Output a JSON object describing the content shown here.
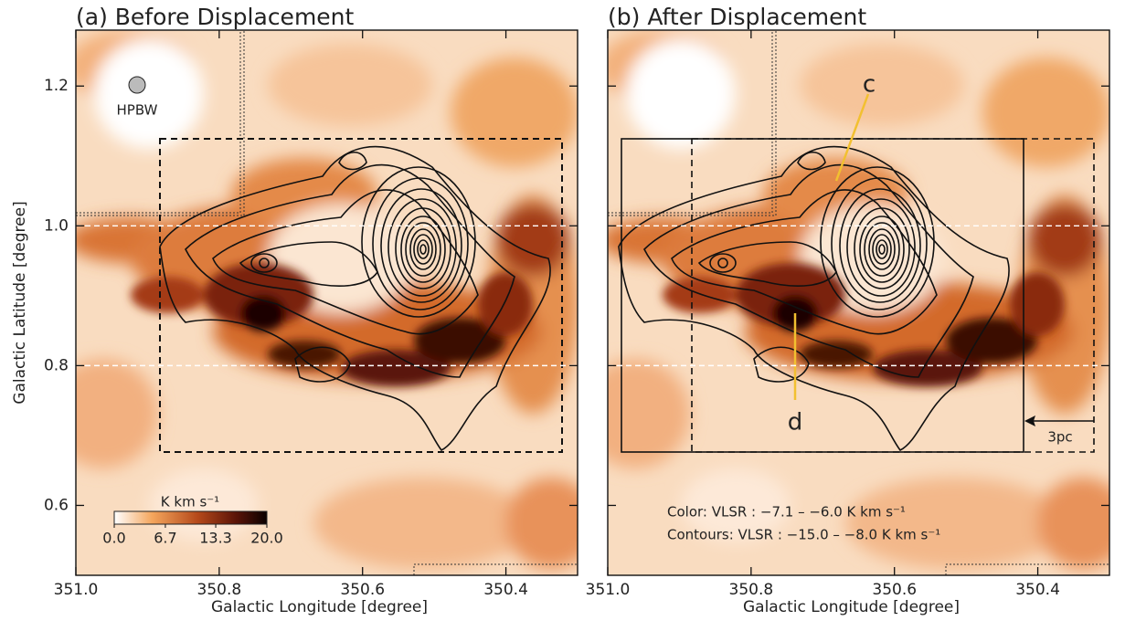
{
  "chart_data": [
    {
      "type": "map",
      "title": "(a) Before Displacement",
      "xlabel": "Galactic Longitude [degree]",
      "ylabel": "Galactic Latitude [degree]",
      "xlim": [
        351.0,
        350.3
      ],
      "ylim": [
        0.5,
        1.28
      ],
      "xticks": [
        {
          "value": 351.0,
          "label": "351.0"
        },
        350.8,
        350.6,
        350.4
      ],
      "yticks": [
        0.6,
        0.8,
        {
          "value": 1.0,
          "label": "1.0"
        },
        1.2
      ],
      "reference_lines": [
        0.8,
        1.0
      ],
      "annotations": [
        "HPBW"
      ],
      "colorbar": {
        "label": "K km s⁻¹",
        "clim": [
          0,
          20
        ],
        "ticks": [
          {
            "value": 0,
            "label": "0.0"
          },
          6.7,
          13.3,
          {
            "value": 20,
            "label": "20.0"
          }
        ]
      }
    },
    {
      "type": "map",
      "title": "(b) After Displacement",
      "xlabel": "Galactic Longitude [degree]",
      "xlim": [
        351.0,
        350.3
      ],
      "ylim": [
        0.5,
        1.28
      ],
      "xticks": [
        {
          "value": 351.0,
          "label": "351.0"
        },
        350.8,
        350.6,
        350.4
      ],
      "yticks": [
        0.6,
        0.8,
        1,
        1.2
      ],
      "reference_lines": [
        0.8,
        1.0
      ],
      "annotations": [
        "c",
        "d",
        "3pc",
        "Color: VLSR : −7.1 – −6.0 K km s⁻¹",
        "Contours: VLSR : −15.0 – −8.0 K km s⁻¹"
      ]
    }
  ]
}
